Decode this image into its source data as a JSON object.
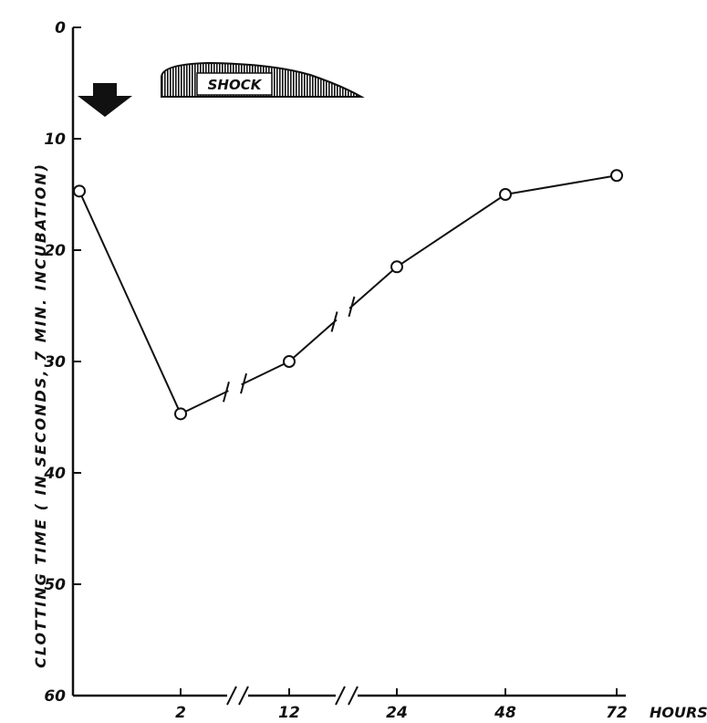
{
  "chart_data": {
    "type": "line",
    "title": "",
    "ylabel": "CLOTTING TIME ( IN SECONDS, 7 MIN. INCUBATION)",
    "xunit": "HOURS",
    "y_inverted": true,
    "ylim": [
      0,
      60
    ],
    "yticks": [
      "0",
      "10",
      "20",
      "30",
      "40",
      "50",
      "60"
    ],
    "categories": [
      "0",
      "2",
      "12",
      "24",
      "48",
      "72"
    ],
    "x_tick_labels": [
      "2",
      "12",
      "24",
      "48",
      "72"
    ],
    "axis_breaks": [
      "2-12",
      "12-24"
    ],
    "values": [
      14.7,
      34.7,
      30.0,
      21.5,
      15.0,
      13.3
    ],
    "annotations": {
      "arrow": "down arrow at time 0",
      "shock_label": "SHOCK"
    },
    "grid": false,
    "legend": "none"
  },
  "colors": {
    "ink": "#111111",
    "background": "#ffffff"
  }
}
